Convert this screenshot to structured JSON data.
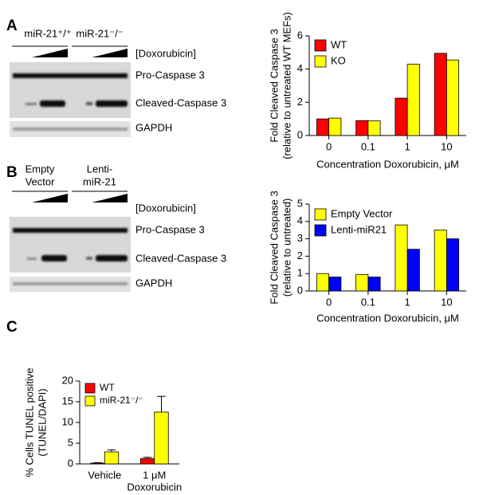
{
  "panel_labels": [
    "A",
    "B",
    "C"
  ],
  "blots": [
    {
      "groups": [
        "miR-21⁺/⁺",
        "miR-21⁻/⁻"
      ],
      "dose_label": "[Doxorubicin]",
      "bands": [
        "Pro-Caspase 3",
        "Cleaved-Caspase 3",
        "GAPDH"
      ]
    },
    {
      "groups": [
        [
          "Empty",
          "Vector"
        ],
        [
          "Lenti-",
          "miR-21"
        ]
      ],
      "dose_label": "[Doxorubicin]",
      "bands": [
        "Pro-Caspase 3",
        "Cleaved-Caspase 3",
        "GAPDH"
      ]
    }
  ],
  "chart_data": [
    {
      "type": "bar",
      "ylabel": [
        "Fold Cleaved Caspase 3",
        "(relative to untreated WT MEFs)"
      ],
      "xlabel": "Concentration Doxorubicin, μM",
      "categories": [
        [
          "0"
        ],
        [
          "0.1"
        ],
        [
          "1"
        ],
        [
          "10"
        ]
      ],
      "series": [
        {
          "name": "WT",
          "color": "#ff0000",
          "values": [
            1.0,
            0.9,
            2.25,
            4.95
          ]
        },
        {
          "name": "KO",
          "color": "#ffff00",
          "values": [
            1.05,
            0.88,
            4.3,
            4.55
          ]
        }
      ],
      "ylim": [
        0,
        6
      ],
      "yticks": [
        0,
        2,
        4,
        6
      ],
      "legend": "upper left"
    },
    {
      "type": "bar",
      "ylabel": [
        "Fold Cleaved Caspase 3",
        "(relative to untreated)"
      ],
      "xlabel": "Concentration Doxorubicin, μM",
      "categories": [
        [
          "0"
        ],
        [
          "0.1"
        ],
        [
          "1"
        ],
        [
          "10"
        ]
      ],
      "series": [
        {
          "name": "Empty Vector",
          "color": "#ffff00",
          "values": [
            1.0,
            0.95,
            3.8,
            3.5
          ]
        },
        {
          "name": "Lenti-miR21",
          "color": "#0000ff",
          "values": [
            0.8,
            0.8,
            2.4,
            3.0
          ]
        }
      ],
      "ylim": [
        0,
        5
      ],
      "yticks": [
        0,
        1,
        2,
        3,
        4,
        5
      ],
      "legend": "upper left"
    },
    {
      "type": "bar",
      "ylabel": [
        "% Cells TUNEL positive",
        "(TUNEL/DAPI)"
      ],
      "categories": [
        [
          "Vehicle"
        ],
        [
          "1 μM",
          "Doxorubicin"
        ]
      ],
      "series": [
        {
          "name": "WT",
          "color": "#ff0000",
          "values": [
            0.2,
            1.3
          ],
          "errors": [
            0.1,
            0.3
          ]
        },
        {
          "name": "miR-21⁻/⁻",
          "color": "#ffff00",
          "values": [
            2.9,
            12.5
          ],
          "errors": [
            0.5,
            3.8
          ]
        }
      ],
      "ylim": [
        0,
        20
      ],
      "yticks": [
        0,
        5,
        10,
        15,
        20
      ],
      "legend": "upper left"
    }
  ]
}
